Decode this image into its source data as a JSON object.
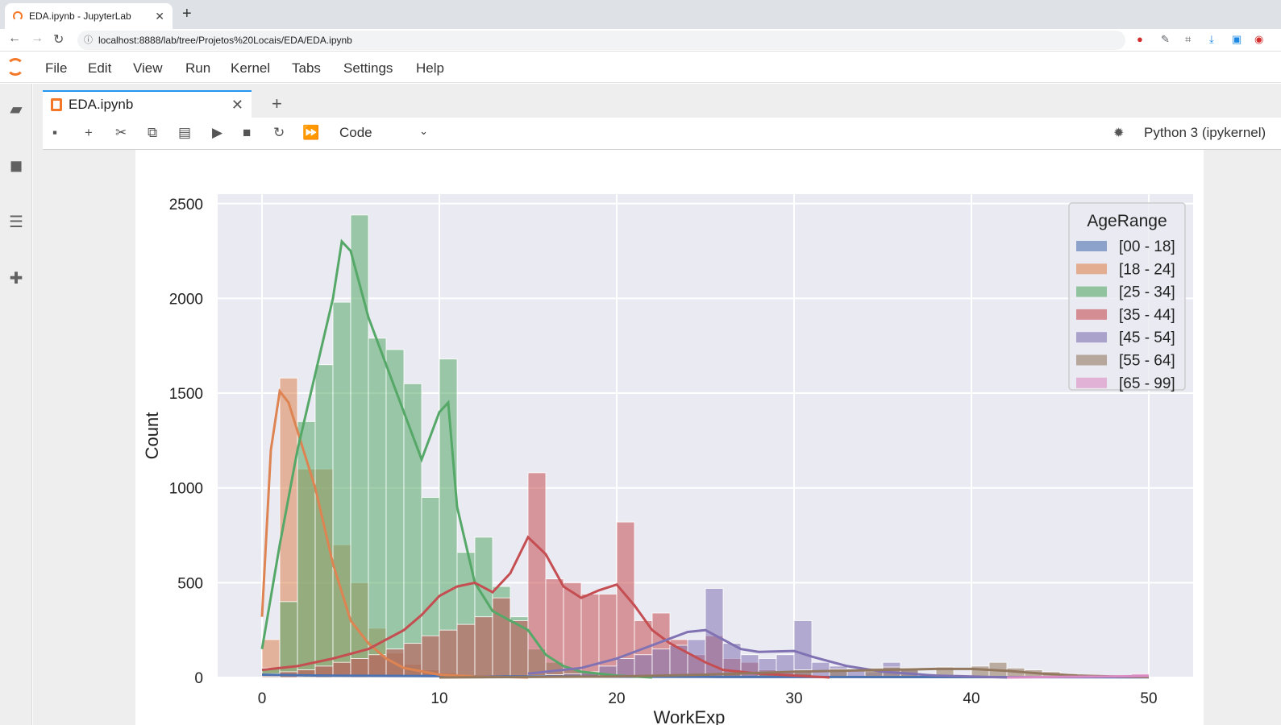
{
  "browser": {
    "tab_title": "EDA.ipynb - JupyterLab",
    "url": "localhost:8888/lab/tree/Projetos%20Locais/EDA/EDA.ipynb"
  },
  "menu": [
    "File",
    "Edit",
    "View",
    "Run",
    "Kernel",
    "Tabs",
    "Settings",
    "Help"
  ],
  "notebook": {
    "tab_label": "EDA.ipynb",
    "cell_type": "Code",
    "kernel": "Python 3 (ipykernel)"
  },
  "icons": {
    "sidebar": [
      "folder-icon",
      "running-icon",
      "toc-icon",
      "extension-icon"
    ],
    "toolbar": [
      "save-icon",
      "add-icon",
      "cut-icon",
      "copy-icon",
      "paste-icon",
      "run-icon",
      "stop-icon",
      "restart-icon",
      "fast-forward-icon"
    ]
  },
  "chart_data": {
    "type": "bar",
    "ylabel": "Count",
    "xlabel": "WorkExp",
    "xlim": [
      -2.5,
      52.5
    ],
    "ylim": [
      0,
      2550
    ],
    "x_ticks": [
      0,
      10,
      20,
      30,
      40,
      50
    ],
    "y_ticks": [
      0,
      500,
      1000,
      1500,
      2000,
      2500
    ],
    "grid": true,
    "legend_title": "AgeRange",
    "legend_position": "top-right",
    "series": [
      {
        "name": "[00 - 18]",
        "color": "#4c72b0",
        "bins": [
          [
            0,
            10
          ],
          [
            1,
            5
          ],
          [
            2,
            5
          ],
          [
            3,
            5
          ],
          [
            4,
            5
          ],
          [
            5,
            5
          ],
          [
            6,
            5
          ],
          [
            7,
            5
          ],
          [
            8,
            5
          ],
          [
            9,
            5
          ],
          [
            10,
            5
          ],
          [
            11,
            5
          ],
          [
            12,
            5
          ],
          [
            13,
            5
          ],
          [
            14,
            5
          ],
          [
            15,
            5
          ]
        ],
        "kde": [
          [
            0,
            15
          ],
          [
            3,
            10
          ],
          [
            8,
            8
          ],
          [
            15,
            5
          ],
          [
            25,
            3
          ],
          [
            35,
            2
          ],
          [
            50,
            1
          ]
        ]
      },
      {
        "name": "[18 - 24]",
        "color": "#dd8452",
        "bins": [
          [
            0,
            200
          ],
          [
            1,
            1580
          ],
          [
            2,
            1100
          ],
          [
            3,
            1100
          ],
          [
            4,
            700
          ],
          [
            5,
            500
          ],
          [
            6,
            260
          ],
          [
            7,
            130
          ],
          [
            8,
            70
          ],
          [
            9,
            40
          ],
          [
            10,
            25
          ],
          [
            11,
            15
          ],
          [
            12,
            10
          ]
        ],
        "kde": [
          [
            0,
            320
          ],
          [
            0.5,
            1200
          ],
          [
            1,
            1510
          ],
          [
            1.5,
            1450
          ],
          [
            2,
            1300
          ],
          [
            3,
            1000
          ],
          [
            4,
            600
          ],
          [
            5,
            300
          ],
          [
            6,
            180
          ],
          [
            7,
            100
          ],
          [
            8,
            50
          ],
          [
            10,
            15
          ],
          [
            12,
            5
          ],
          [
            15,
            0
          ]
        ]
      },
      {
        "name": "[25 - 34]",
        "color": "#55a868",
        "bins": [
          [
            0,
            50
          ],
          [
            1,
            400
          ],
          [
            2,
            1350
          ],
          [
            3,
            1650
          ],
          [
            4,
            1980
          ],
          [
            5,
            2440
          ],
          [
            6,
            1790
          ],
          [
            7,
            1730
          ],
          [
            8,
            1550
          ],
          [
            9,
            950
          ],
          [
            10,
            1680
          ],
          [
            11,
            660
          ],
          [
            12,
            740
          ],
          [
            13,
            480
          ],
          [
            14,
            320
          ],
          [
            15,
            150
          ],
          [
            16,
            80
          ],
          [
            17,
            40
          ],
          [
            18,
            20
          ],
          [
            19,
            10
          ],
          [
            20,
            5
          ]
        ],
        "kde": [
          [
            0,
            150
          ],
          [
            1,
            700
          ],
          [
            2,
            1200
          ],
          [
            3,
            1600
          ],
          [
            4,
            2000
          ],
          [
            4.5,
            2300
          ],
          [
            5,
            2250
          ],
          [
            6,
            1900
          ],
          [
            7,
            1650
          ],
          [
            8,
            1400
          ],
          [
            9,
            1150
          ],
          [
            10,
            1400
          ],
          [
            10.5,
            1450
          ],
          [
            11,
            900
          ],
          [
            12,
            500
          ],
          [
            13,
            350
          ],
          [
            14,
            300
          ],
          [
            15,
            250
          ],
          [
            16,
            120
          ],
          [
            17,
            60
          ],
          [
            18,
            30
          ],
          [
            20,
            10
          ],
          [
            22,
            0
          ]
        ]
      },
      {
        "name": "[35 - 44]",
        "color": "#c44e52",
        "bins": [
          [
            0,
            20
          ],
          [
            1,
            30
          ],
          [
            2,
            40
          ],
          [
            3,
            60
          ],
          [
            4,
            80
          ],
          [
            5,
            100
          ],
          [
            6,
            120
          ],
          [
            7,
            150
          ],
          [
            8,
            180
          ],
          [
            9,
            220
          ],
          [
            10,
            250
          ],
          [
            11,
            280
          ],
          [
            12,
            320
          ],
          [
            13,
            420
          ],
          [
            14,
            300
          ],
          [
            15,
            1080
          ],
          [
            16,
            520
          ],
          [
            17,
            500
          ],
          [
            18,
            440
          ],
          [
            19,
            440
          ],
          [
            20,
            820
          ],
          [
            21,
            300
          ],
          [
            22,
            340
          ],
          [
            23,
            200
          ],
          [
            24,
            120
          ],
          [
            25,
            220
          ],
          [
            26,
            100
          ],
          [
            27,
            80
          ],
          [
            28,
            40
          ],
          [
            29,
            30
          ],
          [
            30,
            20
          ],
          [
            31,
            10
          ],
          [
            32,
            5
          ]
        ],
        "kde": [
          [
            0,
            40
          ],
          [
            2,
            60
          ],
          [
            4,
            100
          ],
          [
            6,
            150
          ],
          [
            8,
            250
          ],
          [
            9,
            330
          ],
          [
            10,
            430
          ],
          [
            11,
            480
          ],
          [
            12,
            500
          ],
          [
            13,
            450
          ],
          [
            14,
            550
          ],
          [
            15,
            740
          ],
          [
            16,
            650
          ],
          [
            17,
            480
          ],
          [
            18,
            420
          ],
          [
            19,
            460
          ],
          [
            20,
            490
          ],
          [
            21,
            380
          ],
          [
            22,
            250
          ],
          [
            23,
            180
          ],
          [
            24,
            130
          ],
          [
            25,
            80
          ],
          [
            26,
            40
          ],
          [
            28,
            20
          ],
          [
            30,
            10
          ],
          [
            32,
            0
          ]
        ]
      },
      {
        "name": "[45 - 54]",
        "color": "#8172b3",
        "bins": [
          [
            15,
            10
          ],
          [
            16,
            15
          ],
          [
            17,
            20
          ],
          [
            18,
            30
          ],
          [
            19,
            60
          ],
          [
            20,
            100
          ],
          [
            21,
            120
          ],
          [
            22,
            150
          ],
          [
            23,
            170
          ],
          [
            24,
            200
          ],
          [
            25,
            470
          ],
          [
            26,
            180
          ],
          [
            27,
            120
          ],
          [
            28,
            100
          ],
          [
            29,
            120
          ],
          [
            30,
            300
          ],
          [
            31,
            80
          ],
          [
            32,
            60
          ],
          [
            33,
            40
          ],
          [
            34,
            30
          ],
          [
            35,
            80
          ],
          [
            36,
            40
          ],
          [
            37,
            20
          ],
          [
            38,
            15
          ],
          [
            39,
            10
          ],
          [
            40,
            5
          ]
        ],
        "kde": [
          [
            15,
            20
          ],
          [
            18,
            50
          ],
          [
            20,
            100
          ],
          [
            22,
            170
          ],
          [
            24,
            240
          ],
          [
            25,
            250
          ],
          [
            26,
            200
          ],
          [
            27,
            150
          ],
          [
            28,
            135
          ],
          [
            30,
            140
          ],
          [
            31,
            110
          ],
          [
            33,
            60
          ],
          [
            35,
            30
          ],
          [
            38,
            10
          ],
          [
            40,
            5
          ],
          [
            42,
            0
          ]
        ]
      },
      {
        "name": "[55 - 64]",
        "color": "#937860",
        "bins": [
          [
            0,
            5
          ],
          [
            2,
            5
          ],
          [
            4,
            5
          ],
          [
            6,
            5
          ],
          [
            8,
            5
          ],
          [
            10,
            5
          ],
          [
            12,
            5
          ],
          [
            14,
            5
          ],
          [
            16,
            5
          ],
          [
            18,
            5
          ],
          [
            20,
            10
          ],
          [
            22,
            10
          ],
          [
            24,
            15
          ],
          [
            26,
            20
          ],
          [
            28,
            25
          ],
          [
            30,
            40
          ],
          [
            32,
            45
          ],
          [
            34,
            50
          ],
          [
            35,
            55
          ],
          [
            36,
            50
          ],
          [
            38,
            55
          ],
          [
            40,
            60
          ],
          [
            41,
            80
          ],
          [
            42,
            50
          ],
          [
            43,
            40
          ],
          [
            44,
            30
          ],
          [
            45,
            20
          ],
          [
            46,
            15
          ],
          [
            47,
            10
          ],
          [
            48,
            5
          ]
        ],
        "kde": [
          [
            10,
            0
          ],
          [
            20,
            5
          ],
          [
            25,
            15
          ],
          [
            30,
            30
          ],
          [
            35,
            40
          ],
          [
            38,
            45
          ],
          [
            40,
            45
          ],
          [
            42,
            35
          ],
          [
            44,
            20
          ],
          [
            46,
            10
          ],
          [
            48,
            5
          ],
          [
            50,
            2
          ]
        ]
      },
      {
        "name": "[65 - 99]",
        "color": "#da8bc3",
        "bins": [
          [
            40,
            5
          ],
          [
            42,
            5
          ],
          [
            44,
            5
          ],
          [
            46,
            5
          ],
          [
            48,
            5
          ],
          [
            49,
            20
          ]
        ],
        "kde": [
          [
            42,
            0
          ],
          [
            45,
            3
          ],
          [
            48,
            5
          ],
          [
            50,
            8
          ]
        ]
      }
    ]
  }
}
